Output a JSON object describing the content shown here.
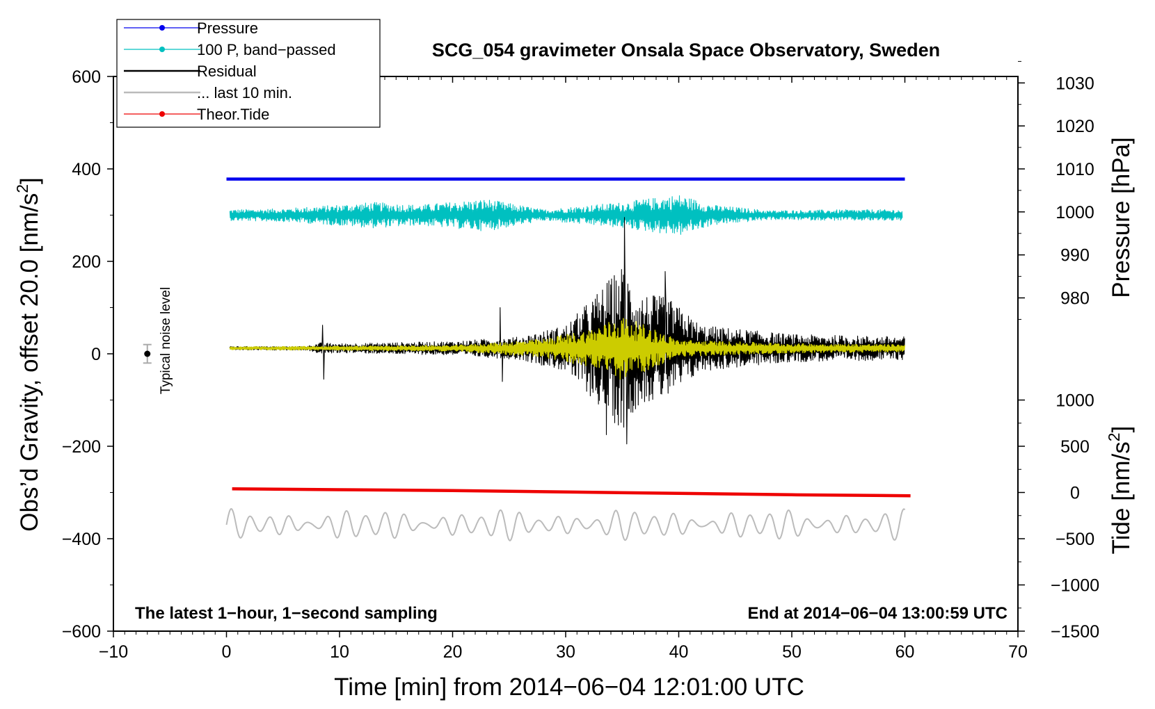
{
  "chart_data": {
    "type": "line",
    "title": "SCG_054 gravimeter Onsala Space Observatory, Sweden",
    "xlabel": "Time [min] from 2014−06−04 12:01:00 UTC",
    "ylabel_left_text": "Obs’d Gravity, offset 20.0 [nm/s",
    "ylabel_left_sup": "2",
    "ylabel_left_close": "]",
    "ylabel_right_pressure": "Pressure [hPa]",
    "ylabel_right_tide_text": "Tide [nm/s",
    "ylabel_right_tide_sup": "2",
    "ylabel_right_tide_close": "]",
    "xlim": [
      -10,
      70
    ],
    "ylim": [
      -600,
      600
    ],
    "x_ticks": [
      -10,
      0,
      10,
      20,
      30,
      40,
      50,
      60,
      70
    ],
    "x_tick_labels": [
      "−10",
      "0",
      "10",
      "20",
      "30",
      "40",
      "50",
      "60",
      "70"
    ],
    "y_ticks": [
      -600,
      -400,
      -200,
      0,
      200,
      400,
      600
    ],
    "y_tick_labels": [
      "−600",
      "−400",
      "−200",
      "0",
      "200",
      "400",
      "600"
    ],
    "pressure_axis": {
      "ticks": [
        980,
        990,
        1000,
        1010,
        1020,
        1030
      ],
      "tick_labels": [
        "980",
        "990",
        "1000",
        "1010",
        "1020",
        "1030"
      ],
      "ref_value": 1010,
      "ref_gravity": 400,
      "gravity_per_unit": 9.3
    },
    "tide_axis": {
      "ticks": [
        -1500,
        -1000,
        -500,
        0,
        500,
        1000
      ],
      "tick_labels": [
        "−1500",
        "−1000",
        "−500",
        "0",
        "500",
        "1000"
      ],
      "ref_value": 0,
      "ref_gravity": -300,
      "gravity_per_unit": 0.2
    },
    "legend": {
      "position": "top-left",
      "entries": [
        {
          "label": "Pressure",
          "color": "#0000ee",
          "marker": true
        },
        {
          "label": "100 P, band−passed",
          "color": "#00c0c0",
          "marker": true
        },
        {
          "label": "Residual",
          "color": "#000000",
          "marker": false
        },
        {
          "label": "... last 10 min.",
          "color": "#bbbbbb",
          "marker": false
        },
        {
          "label": "Theor.Tide",
          "color": "#ee0000",
          "marker": true
        }
      ]
    },
    "annotations": {
      "left": "The latest 1−hour, 1−second sampling",
      "right": "End at 2014−06−04 13:00:59 UTC",
      "noise_label": "Typical noise level",
      "noise_point": {
        "x": -7,
        "y": 0,
        "err": 20
      }
    },
    "series": [
      {
        "name": "Pressure",
        "color": "#0000ee",
        "kind": "flat",
        "x": [
          0,
          60
        ],
        "y": [
          378,
          378
        ]
      },
      {
        "name": "100 P, band−passed",
        "color": "#00c0c0",
        "kind": "noise",
        "x_range": [
          0.3,
          59.8
        ],
        "center": 300,
        "envelope": [
          [
            0.3,
            12
          ],
          [
            5,
            14
          ],
          [
            13,
            28
          ],
          [
            17,
            22
          ],
          [
            23,
            35
          ],
          [
            28,
            12
          ],
          [
            35,
            28
          ],
          [
            38,
            38
          ],
          [
            40,
            45
          ],
          [
            43,
            22
          ],
          [
            48,
            10
          ],
          [
            55,
            12
          ],
          [
            59.8,
            12
          ]
        ]
      },
      {
        "name": "Residual",
        "color": "#000000",
        "kind": "noise",
        "x_range": [
          0.3,
          60
        ],
        "center": 12,
        "envelope": [
          [
            0.3,
            4
          ],
          [
            7,
            4
          ],
          [
            8.3,
            12
          ],
          [
            10,
            10
          ],
          [
            20,
            15
          ],
          [
            26,
            25
          ],
          [
            30,
            50
          ],
          [
            32,
            100
          ],
          [
            35,
            180
          ],
          [
            36.5,
            120
          ],
          [
            39,
            110
          ],
          [
            42,
            50
          ],
          [
            50,
            30
          ],
          [
            60,
            25
          ]
        ],
        "spikes": [
          {
            "x": 8.5,
            "y": 62
          },
          {
            "x": 8.6,
            "y": -55
          },
          {
            "x": 35.2,
            "y": 295
          },
          {
            "x": 35.4,
            "y": -195
          },
          {
            "x": 33.6,
            "y": -175
          },
          {
            "x": 38.8,
            "y": 178
          },
          {
            "x": 24.2,
            "y": 100
          },
          {
            "x": 24.4,
            "y": -60
          }
        ]
      },
      {
        "name": "Residual filtered",
        "color": "#cccc00",
        "kind": "noise",
        "x_range": [
          0.3,
          60
        ],
        "center": 12,
        "envelope": [
          [
            0.3,
            3
          ],
          [
            20,
            6
          ],
          [
            24,
            12
          ],
          [
            28,
            20
          ],
          [
            32,
            40
          ],
          [
            35,
            70
          ],
          [
            37,
            50
          ],
          [
            40,
            18
          ],
          [
            50,
            10
          ],
          [
            60,
            8
          ]
        ]
      },
      {
        "name": "... last 10 min.",
        "color": "#bbbbbb",
        "kind": "wave",
        "x_range": [
          0,
          60
        ],
        "center": -370,
        "amplitude": 35,
        "period_min": 1.7
      },
      {
        "name": "Theor.Tide",
        "color": "#ee0000",
        "kind": "line",
        "x": [
          0.5,
          10,
          20,
          30,
          40,
          50,
          60.5
        ],
        "y": [
          -292,
          -294,
          -296,
          -299,
          -302,
          -305,
          -307
        ]
      }
    ]
  }
}
